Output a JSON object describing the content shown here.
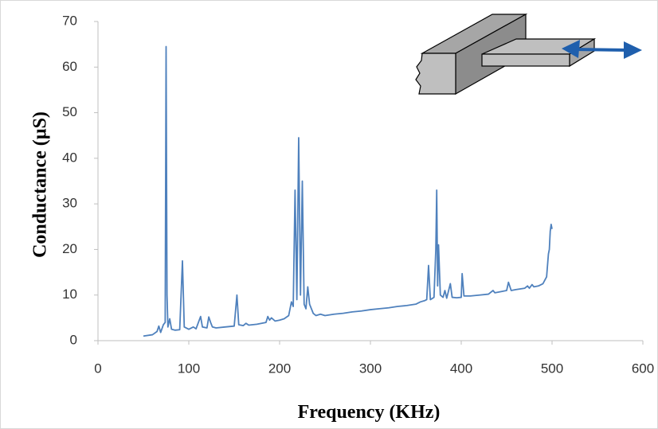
{
  "chart_data": {
    "type": "line",
    "xlabel": "Frequency (KHz)",
    "ylabel": "Conductance (µS)",
    "color": "#4f81bd",
    "xlim": [
      0,
      600
    ],
    "xticks": [
      0,
      100,
      200,
      300,
      400,
      500,
      600
    ],
    "ylim": [
      0,
      70
    ],
    "yticks": [
      0,
      10,
      20,
      30,
      40,
      50,
      60,
      70
    ],
    "x": [
      50,
      60,
      65,
      67,
      69,
      72,
      74,
      75,
      76,
      77,
      79,
      81,
      85,
      90,
      93,
      95,
      100,
      105,
      108,
      113,
      115,
      120,
      122,
      124,
      126,
      130,
      140,
      150,
      153,
      155,
      160,
      163,
      166,
      175,
      185,
      187,
      189,
      191,
      195,
      200,
      205,
      210,
      213,
      215,
      217,
      219,
      221,
      223,
      225,
      227,
      229,
      231,
      233,
      237,
      240,
      245,
      250,
      260,
      270,
      280,
      290,
      300,
      310,
      320,
      330,
      340,
      350,
      355,
      360,
      362,
      364,
      366,
      370,
      372,
      373,
      374,
      375,
      377,
      380,
      382,
      384,
      388,
      390,
      395,
      400,
      401,
      403,
      410,
      420,
      430,
      435,
      437,
      445,
      450,
      452,
      455,
      460,
      470,
      473,
      475,
      478,
      480,
      485,
      490,
      494,
      496,
      497,
      498,
      499,
      500
    ],
    "values": [
      1.0,
      1.3,
      2.0,
      3.2,
      1.8,
      3.5,
      4,
      64.5,
      10,
      3,
      4.8,
      2.5,
      2.3,
      2.4,
      17.5,
      3,
      2.5,
      3,
      2.6,
      5.3,
      3,
      2.8,
      5.2,
      4,
      3,
      2.8,
      3,
      3.2,
      10,
      3.5,
      3.3,
      3.8,
      3.4,
      3.6,
      4,
      5.3,
      4.5,
      5,
      4.3,
      4.5,
      4.8,
      5.5,
      8.5,
      7.5,
      33,
      9,
      44.5,
      10,
      35,
      8,
      7,
      11.8,
      8,
      6,
      5.5,
      5.8,
      5.5,
      5.8,
      6,
      6.3,
      6.5,
      6.8,
      7,
      7.2,
      7.5,
      7.7,
      8,
      8.5,
      8.8,
      9,
      16.5,
      9,
      9.5,
      20,
      33,
      12,
      21,
      10,
      9.5,
      11,
      9.3,
      12.5,
      9.5,
      9.4,
      9.5,
      14.7,
      9.8,
      9.8,
      10,
      10.2,
      11,
      10.5,
      10.8,
      11,
      12.8,
      11,
      11.2,
      11.5,
      12,
      11.5,
      12.3,
      11.8,
      12,
      12.5,
      14,
      19,
      20,
      24,
      25.5,
      24.5
    ]
  }
}
